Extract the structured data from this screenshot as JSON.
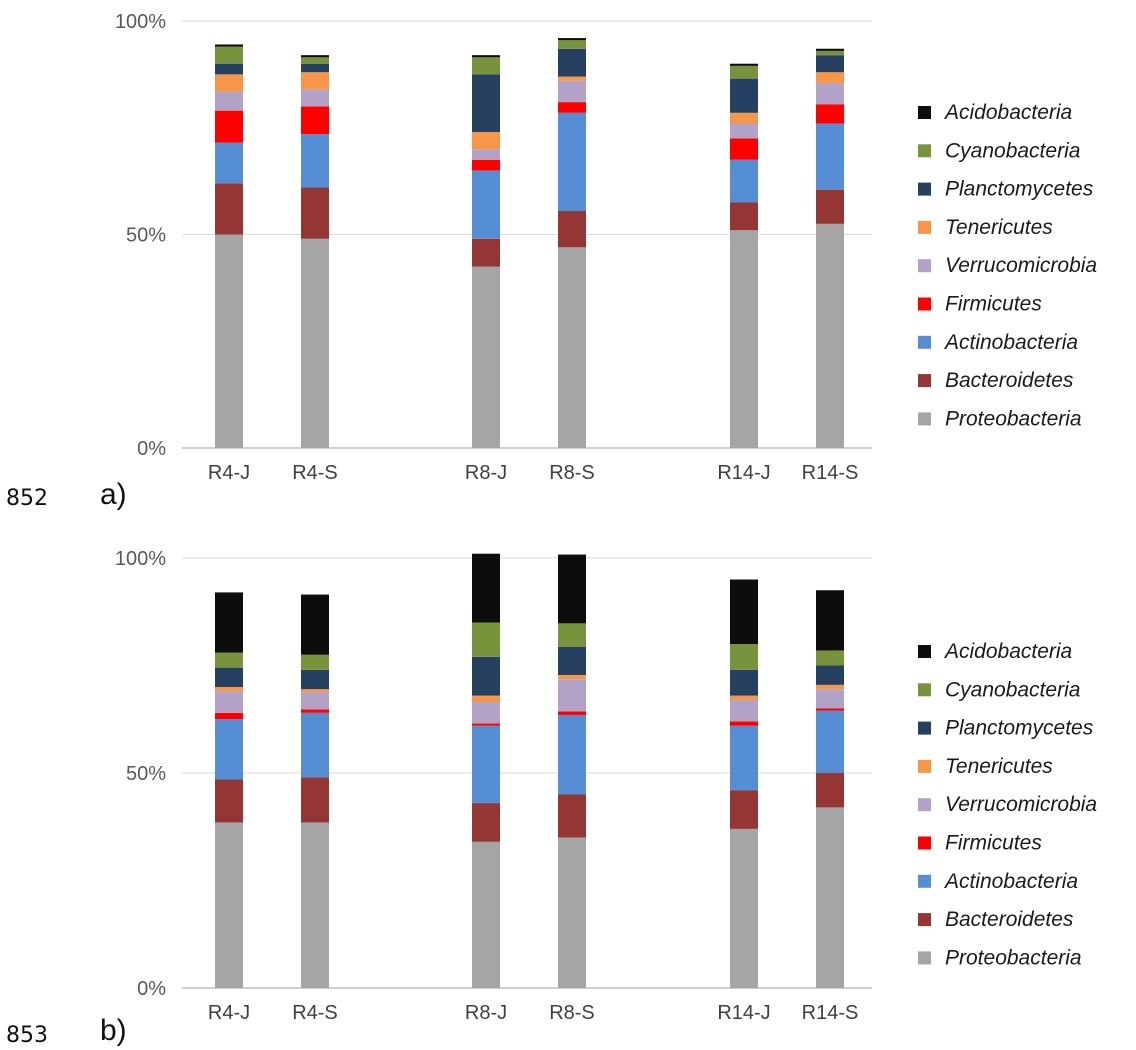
{
  "line_numbers": [
    "852",
    "853"
  ],
  "colors": {
    "Proteobacteria": "#a5a5a5",
    "Bacteroidetes": "#943634",
    "Actinobacteria": "#558ed5",
    "Firmicutes": "#ff0000",
    "Verrucomicrobia": "#b3a2c7",
    "Tenericutes": "#f79646",
    "Planctomycetes": "#254061",
    "Cyanobacteria": "#77933c",
    "Acidobacteria": "#0d0d0d"
  },
  "chart_data": [
    {
      "type": "bar",
      "stacked": true,
      "panel_label": "a)",
      "categories": [
        "R4-J",
        "R4-S",
        "R8-J",
        "R8-S",
        "R14-J",
        "R14-S"
      ],
      "y_ticks": [
        "0%",
        "50%",
        "100%"
      ],
      "ylim": [
        0,
        100
      ],
      "grid": true,
      "legend_position": "right",
      "series": [
        {
          "name": "Proteobacteria",
          "values": [
            50,
            49,
            42.5,
            47,
            51,
            52.5
          ]
        },
        {
          "name": "Bacteroidetes",
          "values": [
            12,
            12,
            6.5,
            8.5,
            6.5,
            8
          ]
        },
        {
          "name": "Actinobacteria",
          "values": [
            9.5,
            12.5,
            16,
            23,
            10,
            15.5
          ]
        },
        {
          "name": "Firmicutes",
          "values": [
            7.5,
            6.5,
            2.5,
            2.5,
            5,
            4.5
          ]
        },
        {
          "name": "Verrucomicrobia",
          "values": [
            4.5,
            4,
            2.5,
            5,
            3.5,
            5
          ]
        },
        {
          "name": "Tenericutes",
          "values": [
            4,
            4,
            4,
            1,
            2.5,
            2.5
          ]
        },
        {
          "name": "Planctomycetes",
          "values": [
            2.5,
            2,
            13.5,
            6.5,
            8,
            4
          ]
        },
        {
          "name": "Cyanobacteria",
          "values": [
            4,
            1.5,
            4,
            2,
            3,
            1
          ]
        },
        {
          "name": "Acidobacteria",
          "values": [
            0.5,
            0.5,
            0.5,
            0.5,
            0.5,
            0.5
          ]
        }
      ]
    },
    {
      "type": "bar",
      "stacked": true,
      "panel_label": "b)",
      "categories": [
        "R4-J",
        "R4-S",
        "R8-J",
        "R8-S",
        "R14-J",
        "R14-S"
      ],
      "y_ticks": [
        "0%",
        "50%",
        "100%"
      ],
      "ylim": [
        0,
        100
      ],
      "grid": true,
      "legend_position": "right",
      "series": [
        {
          "name": "Proteobacteria",
          "values": [
            38.5,
            38.5,
            34,
            35,
            37,
            42
          ]
        },
        {
          "name": "Bacteroidetes",
          "values": [
            10,
            10.5,
            9,
            10,
            9,
            8
          ]
        },
        {
          "name": "Actinobacteria",
          "values": [
            14,
            15,
            18,
            18.5,
            15,
            14.5
          ]
        },
        {
          "name": "Firmicutes",
          "values": [
            1.5,
            0.8,
            0.5,
            0.8,
            1,
            0.5
          ]
        },
        {
          "name": "Verrucomicrobia",
          "values": [
            5,
            4,
            5,
            7.5,
            5,
            4.5
          ]
        },
        {
          "name": "Tenericutes",
          "values": [
            1,
            0.7,
            1.5,
            1,
            1,
            1
          ]
        },
        {
          "name": "Planctomycetes",
          "values": [
            4.5,
            4.5,
            9,
            6.5,
            6,
            4.5
          ]
        },
        {
          "name": "Cyanobacteria",
          "values": [
            3.5,
            3.5,
            8,
            5.5,
            6,
            3.5
          ]
        },
        {
          "name": "Acidobacteria",
          "values": [
            14,
            14,
            16,
            16,
            15,
            14
          ]
        }
      ]
    }
  ],
  "legend_order": [
    "Acidobacteria",
    "Cyanobacteria",
    "Planctomycetes",
    "Tenericutes",
    "Verrucomicrobia",
    "Firmicutes",
    "Actinobacteria",
    "Bacteroidetes",
    "Proteobacteria"
  ]
}
